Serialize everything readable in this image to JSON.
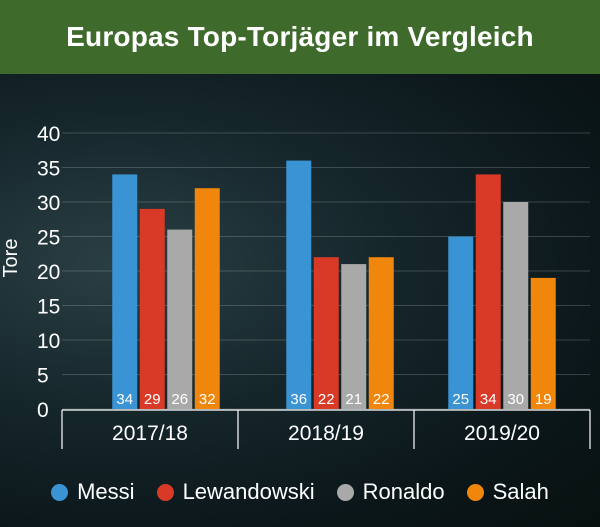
{
  "title": "Europas Top-Torjäger im Vergleich",
  "colors": {
    "title_bar": "#3e6a2c",
    "Messi": "#3a93d3",
    "Lewandowski": "#d93a28",
    "Ronaldo": "#a9a9a9",
    "Salah": "#f0860c"
  },
  "chart_data": {
    "type": "bar",
    "title": "Europas Top-Torjäger im Vergleich",
    "xlabel": "",
    "ylabel": "Tore",
    "ylim": [
      0,
      40
    ],
    "yticks": [
      0,
      5,
      10,
      15,
      20,
      25,
      30,
      35,
      40
    ],
    "grid": true,
    "legend_position": "bottom",
    "categories": [
      "2017/18",
      "2018/19",
      "2019/20"
    ],
    "series": [
      {
        "name": "Messi",
        "values": [
          34,
          36,
          25
        ]
      },
      {
        "name": "Lewandowski",
        "values": [
          29,
          22,
          34
        ]
      },
      {
        "name": "Ronaldo",
        "values": [
          26,
          21,
          30
        ]
      },
      {
        "name": "Salah",
        "values": [
          32,
          22,
          19
        ]
      }
    ]
  }
}
